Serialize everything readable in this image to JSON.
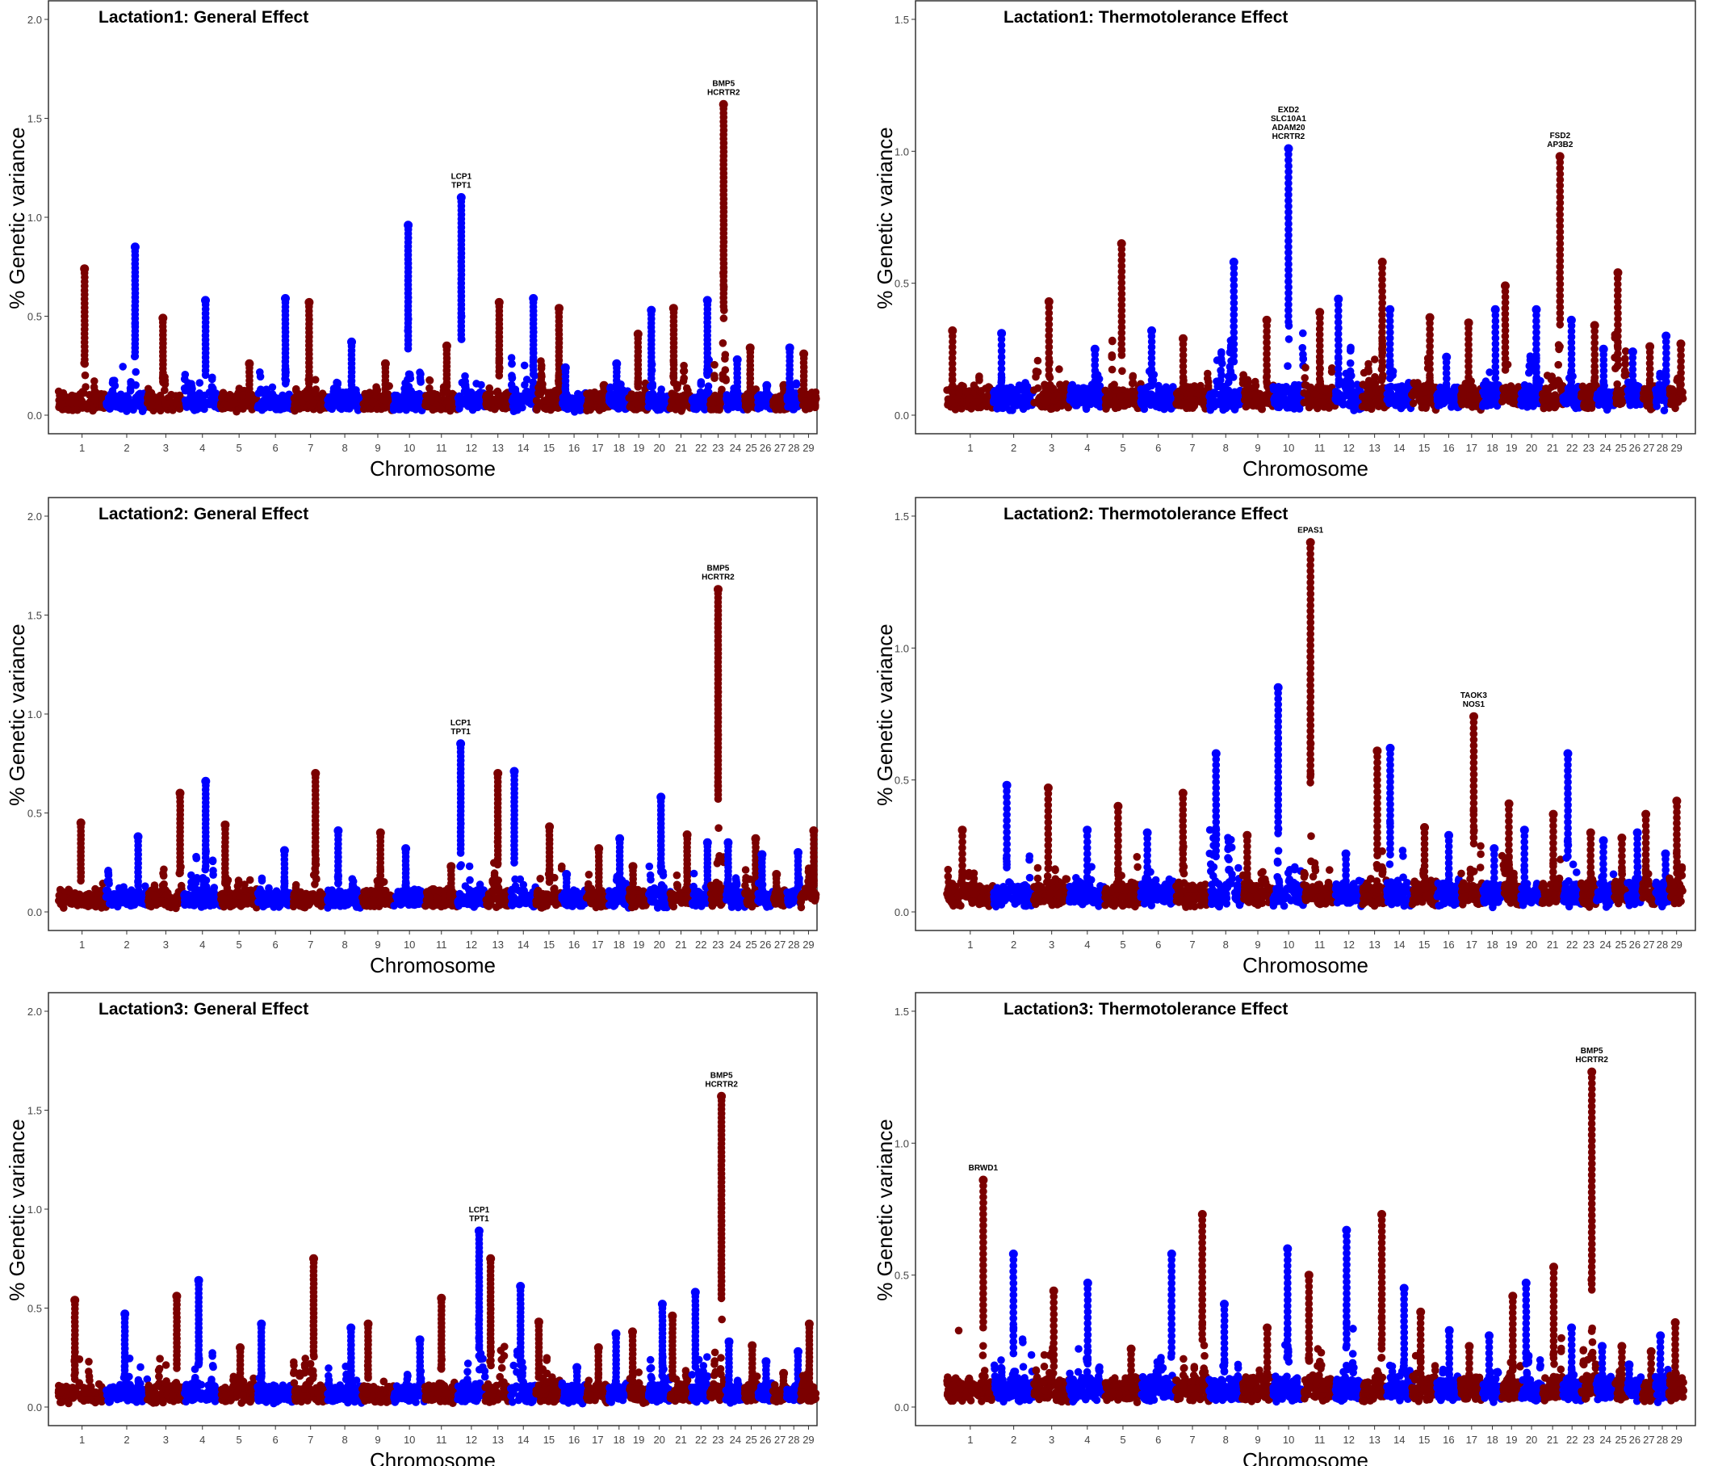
{
  "chart_data": [
    {
      "type": "scatter",
      "title": "Lactation1: General Effect",
      "xlabel": "Chromosome",
      "ylabel": "% Genetic variance",
      "ylim": [
        0,
        2.0
      ],
      "yticks": [
        "0.0",
        "0.5",
        "1.0",
        "1.5",
        "2.0"
      ],
      "categories": [
        "1",
        "2",
        "3",
        "4",
        "5",
        "6",
        "7",
        "8",
        "9",
        "10",
        "11",
        "12",
        "13",
        "14",
        "15",
        "16",
        "17",
        "18",
        "19",
        "20",
        "21",
        "22",
        "23",
        "24",
        "25",
        "26",
        "27",
        "28",
        "29"
      ],
      "chromosome_peaks": [
        0.74,
        0.85,
        0.49,
        0.58,
        0.26,
        0.59,
        0.57,
        0.37,
        0.26,
        0.96,
        0.35,
        1.1,
        0.57,
        0.59,
        0.54,
        0.24,
        0.15,
        0.26,
        0.41,
        0.53,
        0.54,
        0.58,
        1.57,
        0.28,
        0.34,
        0.15,
        0.15,
        0.34,
        0.31
      ],
      "annotations": [
        {
          "chromosome": "12",
          "value": 1.1,
          "lines": [
            "LCP1",
            "TPT1"
          ]
        },
        {
          "chromosome": "23",
          "value": 1.57,
          "lines": [
            "BMP5",
            "HCRTR2"
          ]
        }
      ]
    },
    {
      "type": "scatter",
      "title": "Lactation1: Thermotolerance Effect",
      "xlabel": "Chromosome",
      "ylabel": "% Genetic variance",
      "ylim": [
        0,
        1.5
      ],
      "yticks": [
        "0.0",
        "0.5",
        "1.0",
        "1.5"
      ],
      "categories": [
        "1",
        "2",
        "3",
        "4",
        "5",
        "6",
        "7",
        "8",
        "9",
        "10",
        "11",
        "12",
        "13",
        "14",
        "15",
        "16",
        "17",
        "18",
        "19",
        "20",
        "21",
        "22",
        "23",
        "24",
        "25",
        "26",
        "27",
        "28",
        "29"
      ],
      "chromosome_peaks": [
        0.32,
        0.31,
        0.43,
        0.25,
        0.65,
        0.32,
        0.29,
        0.58,
        0.36,
        1.01,
        0.39,
        0.44,
        0.58,
        0.4,
        0.37,
        0.22,
        0.35,
        0.4,
        0.49,
        0.4,
        0.98,
        0.36,
        0.34,
        0.25,
        0.54,
        0.24,
        0.26,
        0.3,
        0.27
      ],
      "annotations": [
        {
          "chromosome": "10",
          "value": 1.01,
          "lines": [
            "EXD2",
            "SLC10A1",
            "ADAM20",
            "HCRTR2"
          ]
        },
        {
          "chromosome": "21",
          "value": 0.98,
          "lines": [
            "FSD2",
            "AP3B2"
          ]
        }
      ]
    },
    {
      "type": "scatter",
      "title": "Lactation2: General Effect",
      "xlabel": "Chromosome",
      "ylabel": "% Genetic variance",
      "ylim": [
        0,
        2.0
      ],
      "yticks": [
        "0.0",
        "0.5",
        "1.0",
        "1.5",
        "2.0"
      ],
      "categories": [
        "1",
        "2",
        "3",
        "4",
        "5",
        "6",
        "7",
        "8",
        "9",
        "10",
        "11",
        "12",
        "13",
        "14",
        "15",
        "16",
        "17",
        "18",
        "19",
        "20",
        "21",
        "22",
        "23",
        "24",
        "25",
        "26",
        "27",
        "28",
        "29"
      ],
      "chromosome_peaks": [
        0.45,
        0.38,
        0.6,
        0.66,
        0.44,
        0.31,
        0.7,
        0.41,
        0.4,
        0.32,
        0.23,
        0.85,
        0.7,
        0.71,
        0.43,
        0.19,
        0.32,
        0.37,
        0.23,
        0.58,
        0.39,
        0.35,
        1.63,
        0.35,
        0.37,
        0.29,
        0.19,
        0.3,
        0.41
      ],
      "annotations": [
        {
          "chromosome": "12",
          "value": 0.85,
          "lines": [
            "LCP1",
            "TPT1"
          ]
        },
        {
          "chromosome": "23",
          "value": 1.63,
          "lines": [
            "BMP5",
            "HCRTR2"
          ]
        }
      ]
    },
    {
      "type": "scatter",
      "title": "Lactation2: Thermotolerance Effect",
      "xlabel": "Chromosome",
      "ylabel": "% Genetic variance",
      "ylim": [
        0,
        1.5
      ],
      "yticks": [
        "0.0",
        "0.5",
        "1.0",
        "1.5"
      ],
      "categories": [
        "1",
        "2",
        "3",
        "4",
        "5",
        "6",
        "7",
        "8",
        "9",
        "10",
        "11",
        "12",
        "13",
        "14",
        "15",
        "16",
        "17",
        "18",
        "19",
        "20",
        "21",
        "22",
        "23",
        "24",
        "25",
        "26",
        "27",
        "28",
        "29"
      ],
      "chromosome_peaks": [
        0.31,
        0.48,
        0.47,
        0.31,
        0.4,
        0.3,
        0.45,
        0.6,
        0.29,
        0.85,
        1.4,
        0.22,
        0.61,
        0.62,
        0.32,
        0.29,
        0.74,
        0.24,
        0.41,
        0.31,
        0.37,
        0.6,
        0.3,
        0.27,
        0.28,
        0.3,
        0.37,
        0.22,
        0.42
      ],
      "annotations": [
        {
          "chromosome": "11",
          "value": 1.4,
          "lines": [
            "EPAS1"
          ]
        },
        {
          "chromosome": "17",
          "value": 0.74,
          "lines": [
            "TAOK3",
            "NOS1"
          ]
        }
      ]
    },
    {
      "type": "scatter",
      "title": "Lactation3: General Effect",
      "xlabel": "Chromosome",
      "ylabel": "% Genetic variance",
      "ylim": [
        0,
        2.0
      ],
      "yticks": [
        "0.0",
        "0.5",
        "1.0",
        "1.5",
        "2.0"
      ],
      "categories": [
        "1",
        "2",
        "3",
        "4",
        "5",
        "6",
        "7",
        "8",
        "9",
        "10",
        "11",
        "12",
        "13",
        "14",
        "15",
        "16",
        "17",
        "18",
        "19",
        "20",
        "21",
        "22",
        "23",
        "24",
        "25",
        "26",
        "27",
        "28",
        "29"
      ],
      "chromosome_peaks": [
        0.54,
        0.47,
        0.56,
        0.64,
        0.3,
        0.42,
        0.75,
        0.4,
        0.42,
        0.34,
        0.55,
        0.89,
        0.75,
        0.61,
        0.43,
        0.2,
        0.3,
        0.37,
        0.38,
        0.52,
        0.46,
        0.58,
        1.57,
        0.33,
        0.31,
        0.23,
        0.17,
        0.28,
        0.42
      ],
      "annotations": [
        {
          "chromosome": "12",
          "value": 0.89,
          "lines": [
            "LCP1",
            "TPT1"
          ]
        },
        {
          "chromosome": "23",
          "value": 1.57,
          "lines": [
            "BMP5",
            "HCRTR2"
          ]
        }
      ]
    },
    {
      "type": "scatter",
      "title": "Lactation3: Thermotolerance Effect",
      "xlabel": "Chromosome",
      "ylabel": "% Genetic variance",
      "ylim": [
        0,
        1.5
      ],
      "yticks": [
        "0.0",
        "0.5",
        "1.0",
        "1.5"
      ],
      "categories": [
        "1",
        "2",
        "3",
        "4",
        "5",
        "6",
        "7",
        "8",
        "9",
        "10",
        "11",
        "12",
        "13",
        "14",
        "15",
        "16",
        "17",
        "18",
        "19",
        "20",
        "21",
        "22",
        "23",
        "24",
        "25",
        "26",
        "27",
        "28",
        "29"
      ],
      "chromosome_peaks": [
        0.86,
        0.58,
        0.44,
        0.47,
        0.22,
        0.58,
        0.73,
        0.39,
        0.3,
        0.6,
        0.5,
        0.67,
        0.73,
        0.45,
        0.36,
        0.29,
        0.23,
        0.27,
        0.42,
        0.47,
        0.53,
        0.3,
        1.27,
        0.23,
        0.23,
        0.16,
        0.21,
        0.27,
        0.32
      ],
      "annotations": [
        {
          "chromosome": "1",
          "value": 0.86,
          "lines": [
            "BRWD1"
          ]
        },
        {
          "chromosome": "23",
          "value": 1.27,
          "lines": [
            "BMP5",
            "HCRTR2"
          ]
        }
      ]
    }
  ],
  "colors": {
    "odd_chromosome": "#7b0000",
    "even_chromosome": "#0000ff",
    "frame": "#333333"
  },
  "grid": false,
  "legend": "none"
}
